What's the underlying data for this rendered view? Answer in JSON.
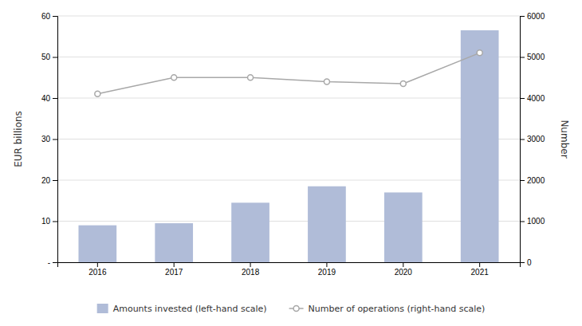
{
  "chart_data": {
    "type": "bar",
    "categories": [
      "2016",
      "2017",
      "2018",
      "2019",
      "2020",
      "2021"
    ],
    "series": [
      {
        "name": "Amounts invested (left-hand scale)",
        "type": "bar",
        "color": "#b0bcd8",
        "values": [
          9.0,
          9.5,
          14.5,
          18.5,
          17.0,
          56.5
        ]
      },
      {
        "name": "Number of operations (right-hand scale)",
        "type": "line",
        "color": "#a8a8a8",
        "marker": "circle",
        "axis": "y2",
        "values": [
          4100,
          4500,
          4500,
          4400,
          4350,
          5100
        ]
      }
    ],
    "ylabel": "EUR billions",
    "y2label": "Number",
    "ylim": [
      0,
      60
    ],
    "yticks": [
      {
        "value": 0,
        "label": "-"
      },
      10,
      20,
      30,
      40,
      50,
      60
    ],
    "y2lim": [
      0,
      6000
    ],
    "y2ticks": [
      0,
      1000,
      2000,
      3000,
      4000,
      5000,
      6000
    ],
    "grid": true,
    "legend": "bottom"
  }
}
